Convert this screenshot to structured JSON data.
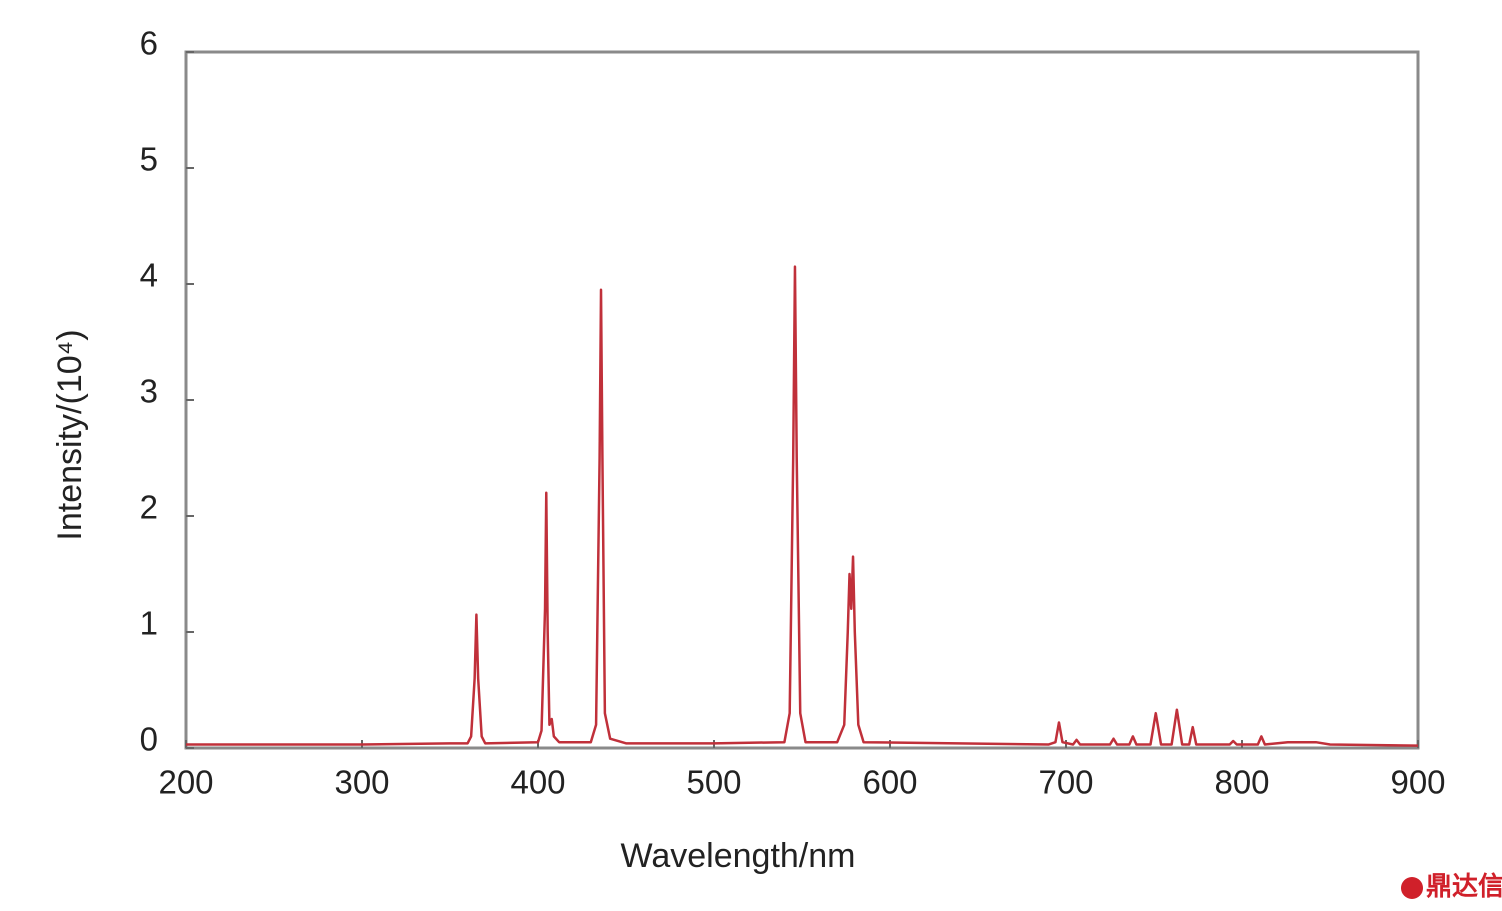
{
  "chart_data": {
    "type": "line",
    "x_label": "Wavelength/nm",
    "y_label": "Intensity/(10⁴)",
    "watermark": "鼎达信",
    "color": "#c0303a",
    "x": [
      200,
      250,
      300,
      350,
      360,
      362,
      364,
      365,
      366,
      368,
      370,
      400,
      402,
      404,
      404.7,
      405.5,
      406.5,
      407.8,
      409,
      412,
      430,
      433,
      435,
      435.8,
      436.6,
      438,
      441,
      450,
      500,
      540,
      543,
      545,
      546,
      547,
      549,
      552,
      570,
      574,
      576,
      577,
      578,
      579,
      580,
      582,
      585,
      690,
      694,
      696,
      698,
      704,
      706,
      708,
      725,
      727,
      729,
      736,
      738,
      740,
      748,
      751,
      754,
      760,
      763,
      766,
      770,
      772,
      774,
      793,
      795,
      797,
      809,
      811,
      813,
      826,
      842,
      850,
      900
    ],
    "values": [
      0.03,
      0.03,
      0.03,
      0.04,
      0.04,
      0.1,
      0.6,
      1.15,
      0.6,
      0.1,
      0.04,
      0.05,
      0.15,
      1.2,
      2.2,
      1.0,
      0.2,
      0.25,
      0.1,
      0.05,
      0.05,
      0.2,
      2.5,
      3.95,
      2.5,
      0.3,
      0.08,
      0.04,
      0.04,
      0.05,
      0.3,
      2.5,
      4.15,
      2.5,
      0.3,
      0.05,
      0.05,
      0.2,
      1.0,
      1.5,
      1.2,
      1.65,
      1.0,
      0.2,
      0.05,
      0.03,
      0.05,
      0.22,
      0.05,
      0.03,
      0.07,
      0.03,
      0.03,
      0.08,
      0.03,
      0.03,
      0.1,
      0.03,
      0.03,
      0.3,
      0.03,
      0.03,
      0.33,
      0.03,
      0.03,
      0.18,
      0.03,
      0.03,
      0.06,
      0.03,
      0.03,
      0.1,
      0.03,
      0.05,
      0.05,
      0.03,
      0.02
    ],
    "xlim": [
      200,
      900
    ],
    "xticks": [
      200,
      300,
      400,
      500,
      600,
      700,
      800,
      900
    ],
    "ylim": [
      0,
      6
    ],
    "yticks": [
      0,
      1,
      2,
      3,
      4,
      5,
      6
    ]
  }
}
